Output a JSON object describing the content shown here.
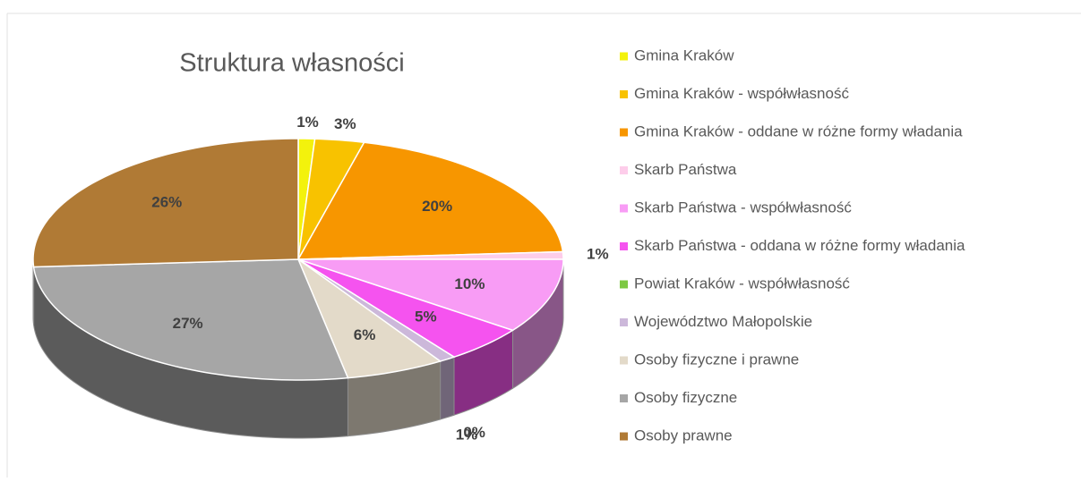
{
  "chart_data": {
    "type": "pie",
    "title": "Struktura własności",
    "categories": [
      "Gmina Kraków",
      "Gmina Kraków - współwłasność",
      "Gmina Kraków - oddane w różne formy władania",
      "Skarb Państwa",
      "Skarb Państwa - współwłasność",
      "Skarb Państwa - oddana w różne formy władania",
      "Powiat Kraków - współwłasność",
      "Województwo Małopolskie",
      "Osoby fizyczne i prawne",
      "Osoby fizyczne",
      "Osoby prawne"
    ],
    "values": [
      1,
      3,
      20,
      1,
      10,
      5,
      0,
      1,
      6,
      27,
      26
    ],
    "value_labels": [
      "1%",
      "3%",
      "20%",
      "1%",
      "10%",
      "5%",
      "0%",
      "1%",
      "6%",
      "27%",
      "26%"
    ],
    "colors": [
      "#f3f20c",
      "#f8c200",
      "#f79600",
      "#fdcdea",
      "#f89cf5",
      "#f553ef",
      "#7dc843",
      "#ccb8da",
      "#e3dac9",
      "#a6a6a6",
      "#b07a35"
    ],
    "legend": "right"
  }
}
